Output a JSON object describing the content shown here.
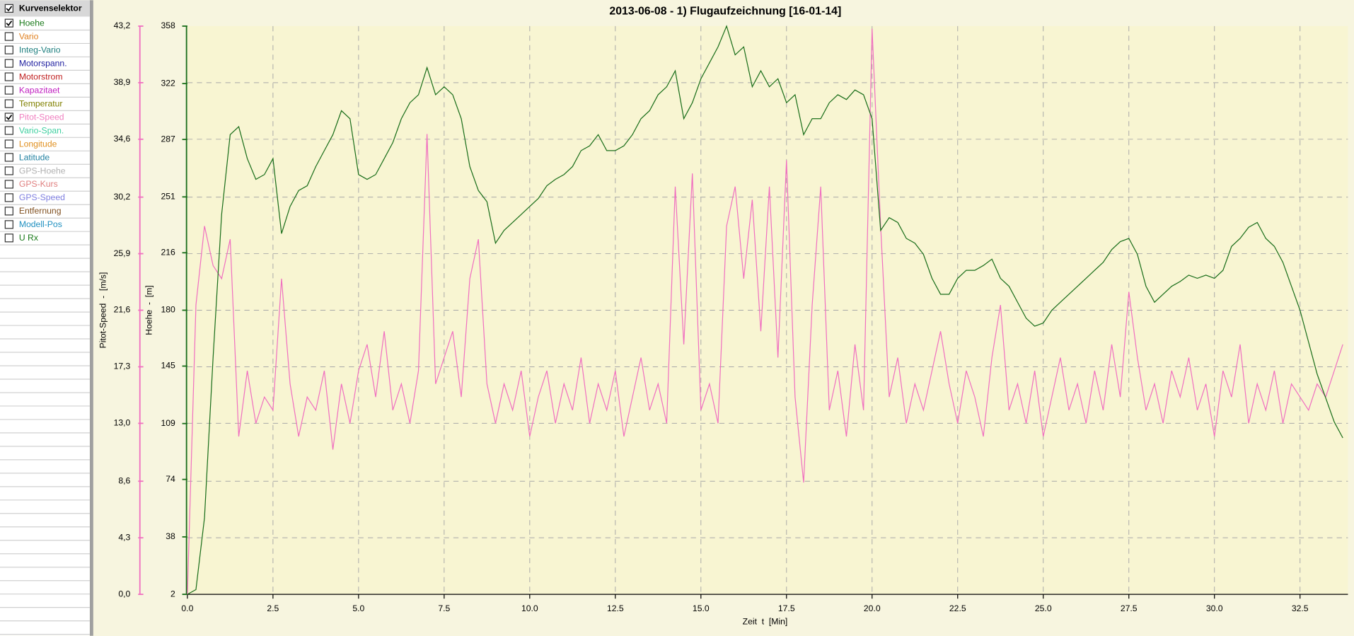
{
  "curve_selector": {
    "title": "Kurvenselektor",
    "checked": true,
    "items": [
      {
        "label": "Hoehe",
        "color": "#1a7a1a",
        "checked": true
      },
      {
        "label": "Vario",
        "color": "#e08020",
        "checked": false
      },
      {
        "label": "Integ-Vario",
        "color": "#208080",
        "checked": false
      },
      {
        "label": "Motorspann.",
        "color": "#2020a0",
        "checked": false
      },
      {
        "label": "Motorstrom",
        "color": "#c02020",
        "checked": false
      },
      {
        "label": "Kapazitaet",
        "color": "#c020c0",
        "checked": false
      },
      {
        "label": "Temperatur",
        "color": "#808000",
        "checked": false
      },
      {
        "label": "Pitot-Speed",
        "color": "#f080c0",
        "checked": true
      },
      {
        "label": "Vario-Span.",
        "color": "#40d0a0",
        "checked": false
      },
      {
        "label": "Longitude",
        "color": "#e09020",
        "checked": false
      },
      {
        "label": "Latitude",
        "color": "#2080a0",
        "checked": false
      },
      {
        "label": "GPS-Hoehe",
        "color": "#b0b0b0",
        "checked": false
      },
      {
        "label": "GPS-Kurs",
        "color": "#e08080",
        "checked": false
      },
      {
        "label": "GPS-Speed",
        "color": "#8080e0",
        "checked": false
      },
      {
        "label": "Entfernung",
        "color": "#805020",
        "checked": false
      },
      {
        "label": "Modell-Pos",
        "color": "#2090c0",
        "checked": false
      },
      {
        "label": "U Rx",
        "color": "#1a7a1a",
        "checked": false
      }
    ]
  },
  "chart_data": {
    "type": "line",
    "title": "2013-06-08 - 1) Flugaufzeichnung [16-01-14]",
    "x_label": "Zeit  t  [Min]",
    "y_label": "Pitot-Speed  -  [m/s]",
    "y2_label": "Hoehe  -  [m]",
    "grid": true,
    "xlim": [
      0,
      33.9
    ],
    "xticks": [
      {
        "value": 0,
        "label": "0.0"
      },
      2.5,
      {
        "value": 5,
        "label": "5.0"
      },
      7.5,
      {
        "value": 10,
        "label": "10.0"
      },
      12.5,
      {
        "value": 15,
        "label": "15.0"
      },
      17.5,
      {
        "value": 20,
        "label": "20.0"
      },
      22.5,
      {
        "value": 25,
        "label": "25.0"
      },
      27.5,
      {
        "value": 30,
        "label": "30.0"
      },
      32.5
    ],
    "ylim": [
      0,
      43.2
    ],
    "yticks": [
      {
        "value": 0,
        "label": "0,0"
      },
      {
        "value": 4.3,
        "label": "4,3"
      },
      {
        "value": 8.6,
        "label": "8,6"
      },
      {
        "value": 13,
        "label": "13,0"
      },
      {
        "value": 17.3,
        "label": "17,3"
      },
      {
        "value": 21.6,
        "label": "21,6"
      },
      {
        "value": 25.9,
        "label": "25,9"
      },
      {
        "value": 30.2,
        "label": "30,2"
      },
      {
        "value": 34.6,
        "label": "34,6"
      },
      {
        "value": 38.9,
        "label": "38,9"
      },
      {
        "value": 43.2,
        "label": "43,2"
      }
    ],
    "y2lim": [
      2,
      358
    ],
    "y2ticks": [
      2,
      38,
      74,
      109,
      145,
      180,
      216,
      251,
      287,
      322,
      358
    ],
    "x": [
      0,
      0.25,
      0.5,
      0.75,
      1,
      1.25,
      1.5,
      1.75,
      2,
      2.25,
      2.5,
      2.75,
      3,
      3.25,
      3.5,
      3.75,
      4,
      4.25,
      4.5,
      4.75,
      5,
      5.25,
      5.5,
      5.75,
      6,
      6.25,
      6.5,
      6.75,
      7,
      7.25,
      7.5,
      7.75,
      8,
      8.25,
      8.5,
      8.75,
      9,
      9.25,
      9.5,
      9.75,
      10,
      10.25,
      10.5,
      10.75,
      11,
      11.25,
      11.5,
      11.75,
      12,
      12.25,
      12.5,
      12.75,
      13,
      13.25,
      13.5,
      13.75,
      14,
      14.25,
      14.5,
      14.75,
      15,
      15.25,
      15.5,
      15.75,
      16,
      16.25,
      16.5,
      16.75,
      17,
      17.25,
      17.5,
      17.75,
      18,
      18.25,
      18.5,
      18.75,
      19,
      19.25,
      19.5,
      19.75,
      20,
      20.25,
      20.5,
      20.75,
      21,
      21.25,
      21.5,
      21.75,
      22,
      22.25,
      22.5,
      22.75,
      23,
      23.25,
      23.5,
      23.75,
      24,
      24.25,
      24.5,
      24.75,
      25,
      25.25,
      25.5,
      25.75,
      26,
      26.25,
      26.5,
      26.75,
      27,
      27.25,
      27.5,
      27.75,
      28,
      28.25,
      28.5,
      28.75,
      29,
      29.25,
      29.5,
      29.75,
      30,
      30.25,
      30.5,
      30.75,
      31,
      31.25,
      31.5,
      31.75,
      32,
      32.25,
      32.5,
      32.75,
      33,
      33.25,
      33.5,
      33.75
    ],
    "series": [
      {
        "name": "Pitot-Speed",
        "color": "#f070c0",
        "values": [
          0,
          22,
          28,
          25,
          24,
          27,
          12,
          17,
          13,
          15,
          14,
          24,
          16,
          12,
          15,
          14,
          17,
          11,
          16,
          13,
          17,
          19,
          15,
          20,
          14,
          16,
          13,
          17,
          35,
          16,
          18,
          20,
          15,
          24,
          27,
          16,
          13,
          16,
          14,
          17,
          12,
          15,
          17,
          13,
          16,
          14,
          18,
          13,
          16,
          14,
          17,
          12,
          15,
          18,
          14,
          16,
          13,
          31,
          19,
          32,
          14,
          16,
          13,
          28,
          31,
          24,
          30,
          20,
          31,
          18,
          33,
          15,
          8.5,
          22,
          31,
          14,
          17,
          12,
          19,
          14,
          43,
          28,
          15,
          18,
          13,
          16,
          14,
          17,
          20,
          16,
          13,
          17,
          15,
          12,
          18,
          22,
          14,
          16,
          13,
          17,
          12,
          15,
          18,
          14,
          16,
          13,
          17,
          14,
          19,
          15,
          23,
          18,
          14,
          16,
          13,
          17,
          15,
          18,
          14,
          16,
          12,
          17,
          15,
          19,
          13,
          16,
          14,
          17,
          13,
          16,
          15,
          14,
          16,
          15,
          17,
          19
        ]
      },
      {
        "name": "Hoehe",
        "color": "#1a6e1a",
        "axis": "y2",
        "values": [
          2,
          5,
          50,
          150,
          240,
          290,
          295,
          275,
          262,
          265,
          275,
          228,
          245,
          255,
          258,
          270,
          280,
          290,
          305,
          300,
          265,
          262,
          265,
          275,
          285,
          300,
          310,
          315,
          332,
          315,
          320,
          315,
          300,
          270,
          255,
          248,
          222,
          230,
          235,
          240,
          245,
          250,
          258,
          262,
          265,
          270,
          280,
          283,
          290,
          280,
          280,
          283,
          290,
          300,
          305,
          315,
          320,
          330,
          300,
          310,
          325,
          335,
          345,
          358,
          340,
          345,
          320,
          330,
          320,
          325,
          310,
          315,
          290,
          300,
          300,
          310,
          315,
          312,
          318,
          315,
          300,
          230,
          238,
          235,
          225,
          222,
          215,
          200,
          190,
          190,
          200,
          205,
          205,
          208,
          212,
          200,
          195,
          185,
          175,
          170,
          172,
          180,
          185,
          190,
          195,
          200,
          205,
          210,
          218,
          223,
          225,
          215,
          195,
          185,
          190,
          195,
          198,
          202,
          200,
          202,
          200,
          205,
          220,
          225,
          232,
          235,
          225,
          220,
          210,
          195,
          180,
          160,
          140,
          125,
          110,
          100
        ]
      }
    ]
  }
}
